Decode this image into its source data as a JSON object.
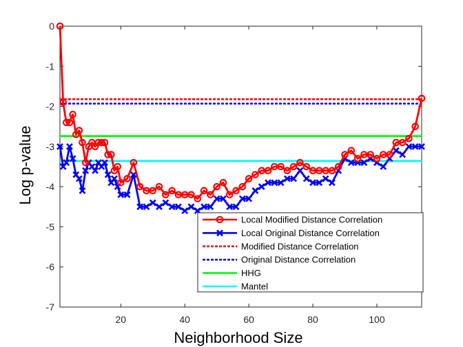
{
  "chart_data": {
    "type": "line",
    "title": "",
    "xlabel": "Neighborhood Size",
    "ylabel": "Log p-value",
    "xlim": [
      1,
      114
    ],
    "ylim": [
      -7,
      0
    ],
    "xticks": [
      20,
      40,
      60,
      80,
      100
    ],
    "yticks": [
      0,
      -1,
      -2,
      -3,
      -4,
      -5,
      -6,
      -7
    ],
    "grid": false,
    "legend_position": "bottom-right",
    "series": [
      {
        "name": "Local Modified Distance Correlation",
        "color": "#ff0000",
        "line_style": "solid",
        "marker": "circle",
        "x": [
          1,
          2,
          3,
          4,
          5,
          6,
          7,
          8,
          9,
          10,
          11,
          12,
          13,
          14,
          15,
          16,
          17,
          18,
          19,
          20,
          22,
          24,
          26,
          28,
          30,
          32,
          34,
          36,
          38,
          40,
          42,
          44,
          46,
          48,
          50,
          52,
          54,
          56,
          58,
          60,
          62,
          64,
          66,
          68,
          70,
          72,
          74,
          76,
          78,
          80,
          82,
          84,
          86,
          88,
          90,
          92,
          94,
          96,
          98,
          100,
          102,
          104,
          106,
          108,
          110,
          112,
          114
        ],
        "y": [
          0,
          -1.9,
          -2.4,
          -2.4,
          -2.2,
          -2.7,
          -2.6,
          -2.9,
          -3.4,
          -3.0,
          -2.9,
          -3.0,
          -2.9,
          -2.9,
          -2.9,
          -3.2,
          -3.2,
          -3.6,
          -3.5,
          -3.9,
          -3.8,
          -3.4,
          -4.0,
          -4.1,
          -4.1,
          -4.0,
          -4.2,
          -4.1,
          -4.2,
          -4.2,
          -4.2,
          -4.3,
          -4.1,
          -4.2,
          -4.0,
          -3.9,
          -4.2,
          -4.1,
          -4.0,
          -3.8,
          -3.7,
          -3.6,
          -3.6,
          -3.5,
          -3.5,
          -3.6,
          -3.5,
          -3.4,
          -3.5,
          -3.6,
          -3.6,
          -3.6,
          -3.6,
          -3.5,
          -3.2,
          -3.1,
          -3.3,
          -3.2,
          -3.2,
          -3.3,
          -3.2,
          -3.2,
          -2.9,
          -2.9,
          -2.8,
          -2.5,
          -1.8
        ]
      },
      {
        "name": "Local Original Distance Correlation",
        "color": "#0000ff",
        "line_style": "solid",
        "marker": "x",
        "x": [
          1,
          2,
          3,
          4,
          5,
          6,
          7,
          8,
          9,
          10,
          11,
          12,
          13,
          14,
          15,
          16,
          17,
          18,
          19,
          20,
          22,
          24,
          26,
          28,
          30,
          32,
          34,
          36,
          38,
          40,
          42,
          44,
          46,
          48,
          50,
          52,
          54,
          56,
          58,
          60,
          62,
          64,
          66,
          68,
          70,
          72,
          74,
          76,
          78,
          80,
          82,
          84,
          86,
          88,
          90,
          92,
          94,
          96,
          98,
          100,
          102,
          104,
          106,
          108,
          110,
          112,
          114
        ],
        "y": [
          -3.0,
          -3.5,
          -3.4,
          -3.0,
          -3.3,
          -3.7,
          -3.8,
          -4.1,
          -3.6,
          -3.4,
          -3.5,
          -3.6,
          -3.4,
          -3.5,
          -3.4,
          -3.7,
          -3.9,
          -3.8,
          -4.0,
          -4.2,
          -4.2,
          -3.7,
          -4.5,
          -4.5,
          -4.4,
          -4.5,
          -4.4,
          -4.5,
          -4.5,
          -4.6,
          -4.5,
          -4.6,
          -4.5,
          -4.5,
          -4.3,
          -4.3,
          -4.5,
          -4.5,
          -4.3,
          -4.3,
          -4.1,
          -4.0,
          -3.9,
          -3.9,
          -3.9,
          -3.8,
          -3.8,
          -3.6,
          -3.8,
          -3.9,
          -3.9,
          -3.8,
          -3.9,
          -3.6,
          -3.3,
          -3.4,
          -3.4,
          -3.4,
          -3.3,
          -3.4,
          -3.5,
          -3.3,
          -3.1,
          -3.2,
          -3.0,
          -3.0,
          -3.0
        ]
      },
      {
        "name": "Modified Distance Correlation",
        "color": "#ff0000",
        "line_style": "dashed",
        "marker": "none",
        "x": [
          1,
          114
        ],
        "y": [
          -1.82,
          -1.82
        ]
      },
      {
        "name": "Original Distance Correlation",
        "color": "#0000ff",
        "line_style": "dashed",
        "marker": "none",
        "x": [
          1,
          114
        ],
        "y": [
          -1.93,
          -1.93
        ]
      },
      {
        "name": "HHG",
        "color": "#00ff00",
        "line_style": "solid",
        "marker": "none",
        "x": [
          1,
          114
        ],
        "y": [
          -2.74,
          -2.74
        ]
      },
      {
        "name": "Mantel",
        "color": "#00ffff",
        "line_style": "solid",
        "marker": "none",
        "x": [
          1,
          114
        ],
        "y": [
          -3.36,
          -3.36
        ]
      }
    ]
  }
}
